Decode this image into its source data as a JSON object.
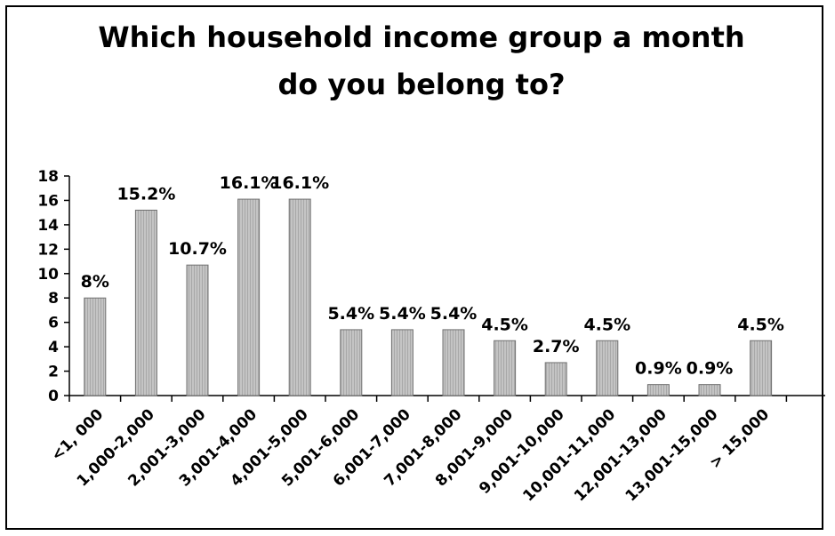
{
  "chart_data": {
    "type": "bar",
    "title_lines": [
      "Which household income group a month",
      "do you belong to?"
    ],
    "categories": [
      "<1, 000",
      "1,000-2,000",
      "2,001-3,000",
      "3,001-4,000",
      "4,001-5,000",
      "5,001-6,000",
      "6,001-7,000",
      "7,001-8,000",
      "8,001-9,000",
      "9,001-10,000",
      "10,001-11,000",
      "12,001-13,000",
      "13,001-15,000",
      "> 15,000"
    ],
    "values": [
      8,
      15.2,
      10.7,
      16.1,
      16.1,
      5.4,
      5.4,
      5.4,
      4.5,
      2.7,
      4.5,
      0.9,
      0.9,
      4.5
    ],
    "data_labels": [
      "8%",
      "15.2%",
      "10.7%",
      "16.1%",
      "16.1%",
      "5.4%",
      "5.4%",
      "5.4%",
      "4.5%",
      "2.7%",
      "4.5%",
      "0.9%",
      "0.9%",
      "4.5%"
    ],
    "ylim": [
      0,
      18
    ],
    "yticks": [
      0,
      2,
      4,
      6,
      8,
      10,
      12,
      14,
      16,
      18
    ],
    "grid": false,
    "legend": "none",
    "bar_color": "#bdbdbd"
  }
}
